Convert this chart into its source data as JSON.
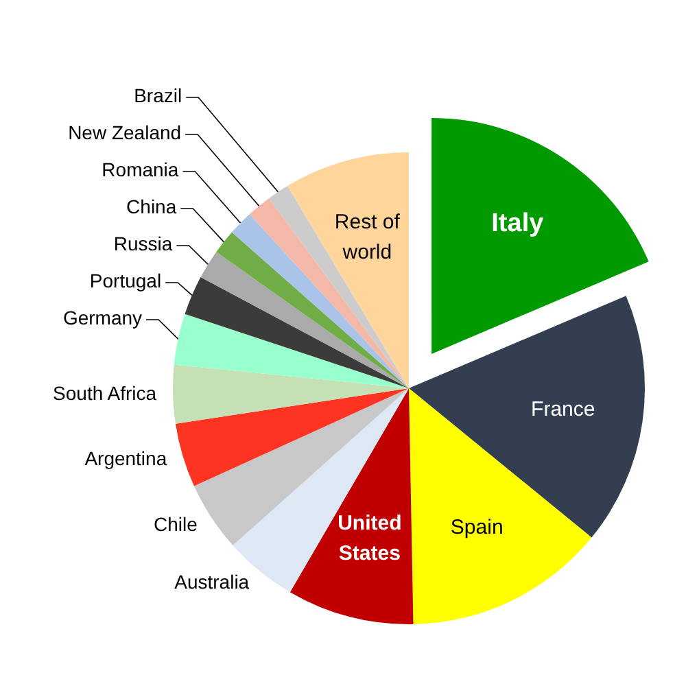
{
  "chart_data": {
    "type": "pie",
    "categories": [
      "Italy",
      "France",
      "Spain",
      "United States",
      "Australia",
      "Chile",
      "Argentina",
      "South Africa",
      "Germany",
      "Portugal",
      "Russia",
      "China",
      "Romania",
      "New Zealand",
      "Brazil",
      "Rest of world"
    ],
    "values": [
      18.6,
      17.3,
      13.8,
      8.7,
      5,
      4.8,
      4.4,
      4,
      3.5,
      2.7,
      2,
      1.7,
      1.7,
      1.7,
      1.5,
      8.6
    ],
    "colors": [
      "#009900",
      "#333f50",
      "#ffff00",
      "#c00000",
      "#dee8f4",
      "#c8c8c8",
      "#ff3322",
      "#c5e0b4",
      "#99ffcc",
      "#3b3b3b",
      "#aaaaaa",
      "#70ad47",
      "#a9c4e8",
      "#f4b8a8",
      "#cccccc",
      "#ffd59c"
    ]
  }
}
